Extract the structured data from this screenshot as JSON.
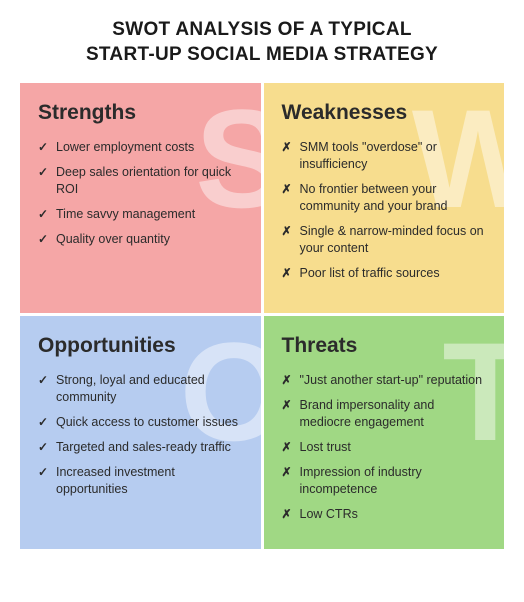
{
  "title_line1": "SWOT ANALYSIS OF A TYPICAL",
  "title_line2": "START-UP SOCIAL MEDIA STRATEGY",
  "quadrants": {
    "strengths": {
      "heading": "Strengths",
      "letter": "S",
      "bg_color": "#f5a6a6",
      "bullet_char": "✓",
      "items": [
        "Lower employment costs",
        "Deep sales orientation for quick ROI",
        "Time savvy management",
        "Quality over quantity"
      ]
    },
    "weaknesses": {
      "heading": "Weaknesses",
      "letter": "W",
      "bg_color": "#f7dd8e",
      "bullet_char": "✗",
      "items": [
        "SMM tools \"overdose\" or insufficiency",
        "No frontier between your community and your brand",
        "Single & narrow-minded focus on your content",
        "Poor list of traffic sources"
      ]
    },
    "opportunities": {
      "heading": "Opportunities",
      "letter": "O",
      "bg_color": "#b6ccf0",
      "bullet_char": "✓",
      "items": [
        "Strong, loyal and educated community",
        "Quick access to customer issues",
        "Targeted and sales-ready traffic",
        "Increased investment opportunities"
      ]
    },
    "threats": {
      "heading": "Threats",
      "letter": "T",
      "bg_color": "#a0d884",
      "bullet_char": "✗",
      "items": [
        "\"Just another start-up\" reputation",
        "Brand impersonality and mediocre engagement",
        "Lost trust",
        "Impression of industry incompetence",
        "Low CTRs"
      ]
    }
  }
}
